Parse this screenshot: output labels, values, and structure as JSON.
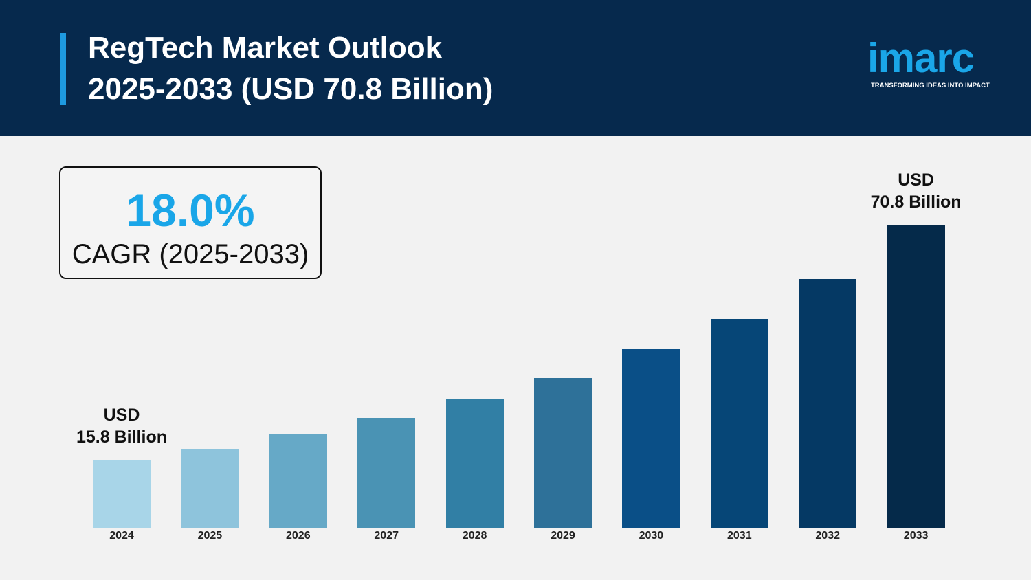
{
  "chart_data": {
    "type": "bar",
    "title": "RegTech Market Outlook\n2025-2033 (USD 70.8 Billion)",
    "logo": {
      "name": "imarc",
      "tagline": "TRANSFORMING IDEAS INTO IMPACT"
    },
    "cagr": {
      "value": "18.0%",
      "label": "CAGR (2025-2033)"
    },
    "categories": [
      "2024",
      "2025",
      "2026",
      "2027",
      "2028",
      "2029",
      "2030",
      "2031",
      "2032",
      "2033"
    ],
    "values": [
      15.8,
      18.3,
      21.9,
      25.7,
      30.1,
      35.0,
      41.9,
      48.9,
      58.2,
      70.8
    ],
    "value_labels": [
      "USD\n15.8 Billion",
      null,
      null,
      null,
      null,
      null,
      null,
      null,
      null,
      "USD\n70.8 Billion"
    ],
    "colors": [
      "#a8d5e8",
      "#8ec4dc",
      "#66a9c7",
      "#4a93b4",
      "#317fa5",
      "#2e7199",
      "#0a4f87",
      "#064677",
      "#053964",
      "#052a4a"
    ]
  }
}
